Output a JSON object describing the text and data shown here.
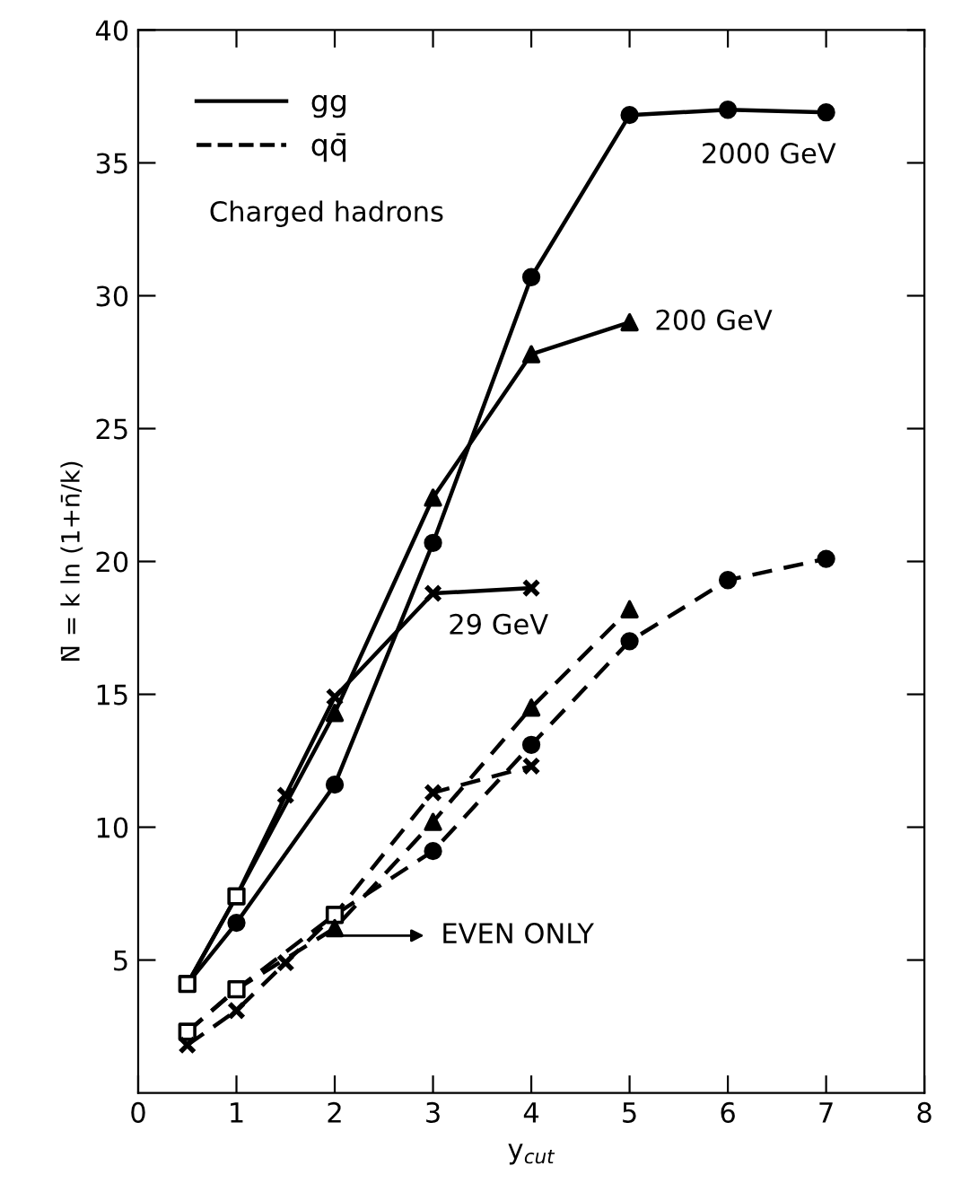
{
  "chart_data": {
    "type": "line",
    "xlabel": "y$_{cut}$",
    "ylabel": "N̄ = k ln (1+n̄/k)",
    "xlim": [
      0,
      8
    ],
    "xticks": [
      0,
      1,
      2,
      3,
      4,
      5,
      6,
      7,
      8
    ],
    "ylim": [
      0,
      40
    ],
    "yticks": [
      5,
      10,
      15,
      20,
      25,
      30,
      35,
      40
    ],
    "grid": false,
    "legend": "top left",
    "series": [
      {
        "name": "gg",
        "line_style": "solid",
        "color": "#000000",
        "x": [
          0.5,
          1,
          2,
          3,
          4,
          5,
          6,
          7
        ],
        "values": [
          4.1,
          6.4,
          11.6,
          20.7,
          30.7,
          36.8,
          37.0,
          36.9
        ]
      },
      {
        "type": "line",
        "line_style": "solid",
        "color": "#000000",
        "x": [
          0.5,
          1,
          2,
          3,
          4,
          5
        ],
        "values": [
          4.1,
          7.4,
          14.3,
          22.4,
          27.8,
          29.0
        ]
      },
      {
        "type": "line",
        "line_style": "solid",
        "color": "#000000",
        "x": [
          0.5,
          1,
          1.5,
          2,
          3,
          4
        ],
        "values": [
          4.1,
          7.4,
          11.2,
          14.9,
          18.8,
          19.0
        ]
      },
      {
        "name": "qq̄",
        "line_style": "dashed",
        "color": "#000000",
        "x": [
          0.5,
          1,
          2,
          3,
          4,
          5,
          6,
          7
        ],
        "values": [
          2.3,
          3.9,
          6.7,
          9.1,
          13.1,
          17.0,
          19.3,
          20.1
        ]
      },
      {
        "type": "line",
        "line_style": "dashed",
        "color": "#000000",
        "x": [
          0.5,
          1,
          2,
          3,
          4,
          5
        ],
        "values": [
          2.3,
          3.9,
          6.2,
          10.2,
          14.5,
          18.2
        ]
      },
      {
        "type": "line",
        "line_style": "dashed",
        "color": "#000000",
        "x": [
          0.5,
          1,
          1.5,
          2,
          3,
          4
        ],
        "values": [
          1.8,
          3.1,
          4.9,
          6.7,
          11.3,
          12.3
        ]
      },
      {
        "type": "scatter",
        "marker": "square",
        "color": "#000000",
        "x": [
          0.5,
          1,
          0.5,
          1,
          2
        ],
        "values": [
          4.1,
          7.4,
          2.3,
          3.9,
          6.7
        ]
      },
      {
        "type": "scatter",
        "marker": "circle",
        "color": "#000000",
        "x": [
          1,
          2,
          3,
          4,
          5,
          6,
          7,
          3,
          4,
          5,
          6,
          7
        ],
        "values": [
          6.4,
          11.6,
          20.7,
          30.7,
          36.8,
          37.0,
          36.9,
          9.1,
          13.1,
          17.0,
          19.3,
          20.1
        ]
      },
      {
        "type": "scatter",
        "marker": "triangle",
        "color": "#000000",
        "x": [
          2,
          3,
          4,
          5,
          2,
          3,
          4,
          5
        ],
        "values": [
          14.3,
          22.4,
          27.8,
          29.0,
          6.2,
          10.2,
          14.5,
          18.2
        ]
      },
      {
        "type": "scatter",
        "marker": "cross",
        "color": "#000000",
        "x": [
          1.5,
          2,
          3,
          4,
          0.5,
          1,
          1.5,
          3,
          4
        ],
        "values": [
          11.2,
          14.9,
          18.8,
          19.0,
          1.8,
          3.1,
          4.9,
          11.3,
          12.3
        ]
      }
    ],
    "annotations": [
      "Charged hadrons",
      {
        "text": "2000 GeV",
        "x": 7,
        "y": 36.9
      },
      {
        "text": "200 GeV",
        "x": 5,
        "y": 29.0
      },
      {
        "text": "29 GeV",
        "x": 3,
        "y": 18.8
      },
      "EVEN ONLY"
    ]
  }
}
